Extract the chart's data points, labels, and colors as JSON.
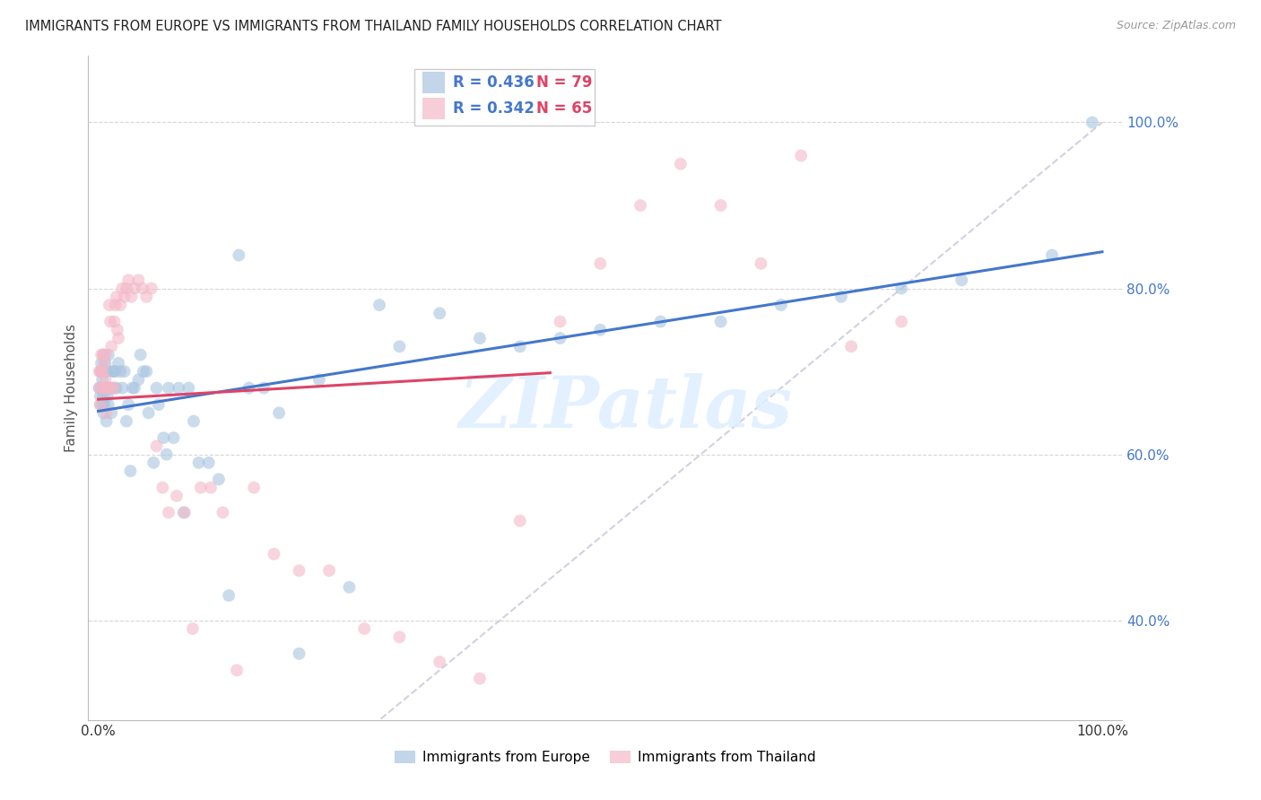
{
  "title": "IMMIGRANTS FROM EUROPE VS IMMIGRANTS FROM THAILAND FAMILY HOUSEHOLDS CORRELATION CHART",
  "source": "Source: ZipAtlas.com",
  "ylabel": "Family Households",
  "ytick_labels": [
    "100.0%",
    "80.0%",
    "60.0%",
    "40.0%"
  ],
  "ytick_values": [
    1.0,
    0.8,
    0.6,
    0.4
  ],
  "xtick_labels": [
    "0.0%",
    "100.0%"
  ],
  "xtick_values": [
    0.0,
    1.0
  ],
  "xlim": [
    -0.01,
    1.02
  ],
  "ylim": [
    0.28,
    1.08
  ],
  "blue_color": "#a8c4e0",
  "pink_color": "#f4b8c8",
  "blue_line_color": "#4477cc",
  "pink_line_color": "#dd4466",
  "diag_line_color": "#ccccdd",
  "grid_color": "#cccccc",
  "watermark_color": "#ddeeff",
  "tick_color": "#4477cc",
  "legend_blue_R": "R = 0.436",
  "legend_blue_N": "N = 79",
  "legend_pink_R": "R = 0.342",
  "legend_pink_N": "N = 65",
  "legend_label_blue": "Immigrants from Europe",
  "legend_label_pink": "Immigrants from Thailand",
  "watermark": "ZIPatlas",
  "europe_x": [
    0.001,
    0.002,
    0.002,
    0.003,
    0.003,
    0.003,
    0.004,
    0.004,
    0.005,
    0.005,
    0.005,
    0.006,
    0.007,
    0.007,
    0.008,
    0.008,
    0.009,
    0.009,
    0.01,
    0.01,
    0.011,
    0.012,
    0.013,
    0.014,
    0.015,
    0.016,
    0.017,
    0.018,
    0.02,
    0.022,
    0.024,
    0.026,
    0.028,
    0.03,
    0.032,
    0.034,
    0.036,
    0.04,
    0.042,
    0.045,
    0.048,
    0.05,
    0.055,
    0.058,
    0.06,
    0.065,
    0.068,
    0.07,
    0.075,
    0.08,
    0.085,
    0.09,
    0.095,
    0.1,
    0.11,
    0.12,
    0.13,
    0.14,
    0.15,
    0.165,
    0.18,
    0.2,
    0.22,
    0.25,
    0.28,
    0.3,
    0.34,
    0.38,
    0.42,
    0.46,
    0.5,
    0.56,
    0.62,
    0.68,
    0.74,
    0.8,
    0.86,
    0.95,
    0.99
  ],
  "europe_y": [
    0.68,
    0.67,
    0.66,
    0.68,
    0.7,
    0.71,
    0.66,
    0.69,
    0.65,
    0.67,
    0.72,
    0.66,
    0.68,
    0.71,
    0.64,
    0.68,
    0.67,
    0.7,
    0.66,
    0.72,
    0.68,
    0.68,
    0.65,
    0.7,
    0.7,
    0.68,
    0.7,
    0.68,
    0.71,
    0.7,
    0.68,
    0.7,
    0.64,
    0.66,
    0.58,
    0.68,
    0.68,
    0.69,
    0.72,
    0.7,
    0.7,
    0.65,
    0.59,
    0.68,
    0.66,
    0.62,
    0.6,
    0.68,
    0.62,
    0.68,
    0.53,
    0.68,
    0.64,
    0.59,
    0.59,
    0.57,
    0.43,
    0.84,
    0.68,
    0.68,
    0.65,
    0.36,
    0.69,
    0.44,
    0.78,
    0.73,
    0.77,
    0.74,
    0.73,
    0.74,
    0.75,
    0.76,
    0.76,
    0.78,
    0.79,
    0.8,
    0.81,
    0.84,
    1.0
  ],
  "thailand_x": [
    0.001,
    0.001,
    0.002,
    0.002,
    0.003,
    0.003,
    0.004,
    0.004,
    0.005,
    0.006,
    0.006,
    0.007,
    0.007,
    0.008,
    0.009,
    0.01,
    0.011,
    0.012,
    0.013,
    0.014,
    0.015,
    0.016,
    0.017,
    0.018,
    0.019,
    0.02,
    0.022,
    0.024,
    0.026,
    0.028,
    0.03,
    0.033,
    0.036,
    0.04,
    0.044,
    0.048,
    0.053,
    0.058,
    0.064,
    0.07,
    0.078,
    0.086,
    0.094,
    0.102,
    0.112,
    0.124,
    0.138,
    0.155,
    0.175,
    0.2,
    0.23,
    0.265,
    0.3,
    0.34,
    0.38,
    0.42,
    0.46,
    0.5,
    0.54,
    0.58,
    0.62,
    0.66,
    0.7,
    0.75,
    0.8
  ],
  "thailand_y": [
    0.7,
    0.68,
    0.66,
    0.7,
    0.7,
    0.72,
    0.68,
    0.7,
    0.72,
    0.68,
    0.71,
    0.69,
    0.72,
    0.65,
    0.68,
    0.68,
    0.78,
    0.76,
    0.73,
    0.68,
    0.68,
    0.76,
    0.78,
    0.79,
    0.75,
    0.74,
    0.78,
    0.8,
    0.79,
    0.8,
    0.81,
    0.79,
    0.8,
    0.81,
    0.8,
    0.79,
    0.8,
    0.61,
    0.56,
    0.53,
    0.55,
    0.53,
    0.39,
    0.56,
    0.56,
    0.53,
    0.34,
    0.56,
    0.48,
    0.46,
    0.46,
    0.39,
    0.38,
    0.35,
    0.33,
    0.52,
    0.76,
    0.83,
    0.9,
    0.95,
    0.9,
    0.83,
    0.96,
    0.73,
    0.76
  ]
}
